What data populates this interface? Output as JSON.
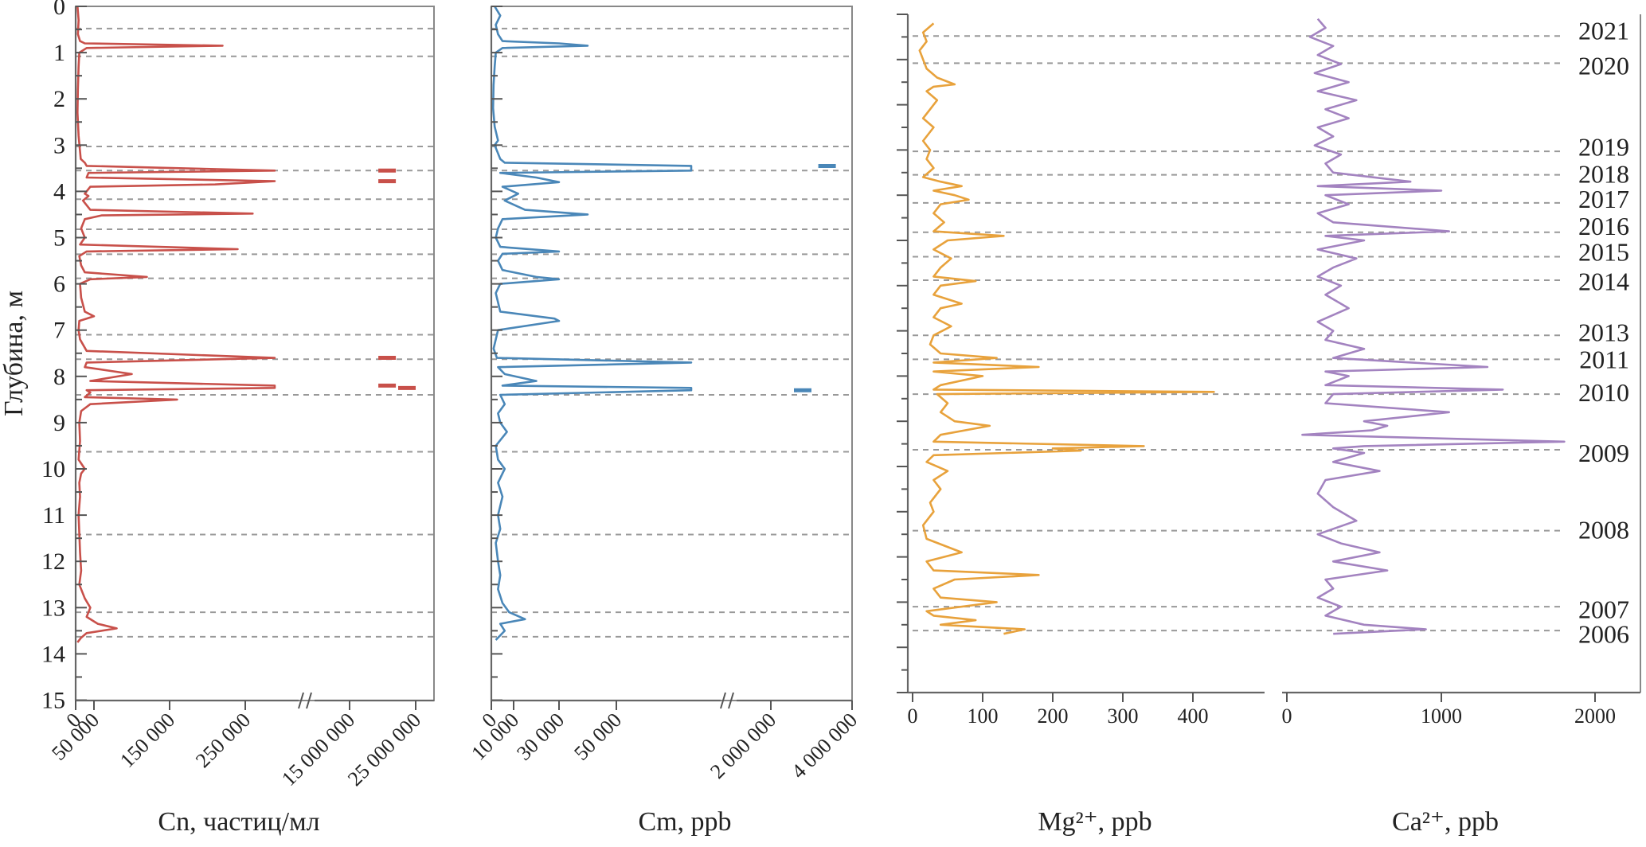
{
  "y_axis": {
    "label": "Глубина, м",
    "ticks": [
      "0",
      "1",
      "2",
      "3",
      "4",
      "5",
      "6",
      "7",
      "8",
      "9",
      "10",
      "11",
      "12",
      "13",
      "14",
      "15"
    ]
  },
  "year_labels": [
    "2021",
    "2020",
    "2019",
    "2018",
    "2017",
    "2016",
    "2015",
    "2014",
    "2013",
    "2011",
    "2010",
    "2009",
    "2008",
    "2007",
    "2006"
  ],
  "chart_data": [
    {
      "type": "line",
      "title": "",
      "xlabel": "Cn, частиц/мл",
      "ylabel": "Глубина, м",
      "x_tick_labels": [
        "0",
        "50 000",
        "150 000",
        "250 000",
        "15 000 000",
        "25 000 000"
      ],
      "broken_axis": true,
      "color": "#c8504a",
      "ylim": [
        0,
        15
      ],
      "xlim_low": [
        0,
        290000
      ],
      "xlim_high": [
        5000000,
        27000000
      ],
      "series": [
        {
          "depth": [
            0,
            0.3,
            0.6,
            0.75,
            0.8,
            0.85,
            0.9,
            1.0,
            1.3,
            1.8,
            2.3,
            2.8,
            3.3,
            3.38,
            3.45,
            3.55,
            3.6,
            3.7,
            3.78,
            3.85,
            3.9,
            4.05,
            4.1,
            4.2,
            4.4,
            4.48,
            4.52,
            4.6,
            4.8,
            5.0,
            5.15,
            5.25,
            5.3,
            5.4,
            5.6,
            5.75,
            5.85,
            5.9,
            6.0,
            6.3,
            6.6,
            6.7,
            6.75,
            6.8,
            7.0,
            7.2,
            7.45,
            7.6,
            7.7,
            7.8,
            7.95,
            8.1,
            8.2,
            8.25,
            8.3,
            8.35,
            8.45,
            8.5,
            8.6,
            8.75,
            9.0,
            9.4,
            9.8,
            10.0,
            10.1,
            10.3,
            10.6,
            11.0,
            11.4,
            11.8,
            12.2,
            12.5,
            12.8,
            13.0,
            13.2,
            13.35,
            13.45,
            13.55,
            13.65,
            13.75
          ],
          "value": [
            5000,
            8000,
            6000,
            12000,
            25000,
            220000,
            30000,
            10000,
            8000,
            6000,
            5000,
            8000,
            14000,
            25000,
            30000,
            22000000,
            35000,
            30000,
            22000000,
            210000,
            40000,
            25000,
            35000,
            20000,
            40000,
            260000,
            60000,
            25000,
            15000,
            25000,
            12000,
            240000,
            30000,
            10000,
            15000,
            25000,
            120000,
            40000,
            12000,
            15000,
            25000,
            50000,
            30000,
            10000,
            8000,
            12000,
            30000,
            22000000,
            30000,
            25000,
            100000,
            40000,
            22000000,
            25000000,
            30000,
            40000,
            25000,
            160000,
            40000,
            15000,
            10000,
            12000,
            8000,
            25000,
            15000,
            10000,
            12000,
            8000,
            10000,
            12000,
            15000,
            10000,
            25000,
            40000,
            30000,
            55000,
            80000,
            30000,
            15000,
            5000
          ]
        }
      ]
    },
    {
      "type": "line",
      "title": "",
      "xlabel": "Cm, ppb",
      "ylabel": "",
      "x_tick_labels": [
        "0",
        "10 000",
        "30 000",
        "50 000",
        "2 000 000",
        "4 000 000"
      ],
      "broken_axis": true,
      "color": "#4a87b8",
      "ylim": [
        0,
        15
      ],
      "xlim_low": [
        0,
        62000
      ],
      "xlim_high": [
        1000000,
        4300000
      ],
      "series": [
        {
          "depth": [
            0,
            0.2,
            0.4,
            0.6,
            0.75,
            0.8,
            0.85,
            0.9,
            1.0,
            1.3,
            1.7,
            2.2,
            2.6,
            2.9,
            3.0,
            3.3,
            3.38,
            3.45,
            3.55,
            3.6,
            3.7,
            3.8,
            3.9,
            4.05,
            4.2,
            4.4,
            4.5,
            4.6,
            4.8,
            5.0,
            5.2,
            5.3,
            5.35,
            5.5,
            5.7,
            5.85,
            5.9,
            6.0,
            6.2,
            6.4,
            6.6,
            6.75,
            6.8,
            7.0,
            7.2,
            7.4,
            7.6,
            7.7,
            7.8,
            7.95,
            8.1,
            8.2,
            8.25,
            8.3,
            8.4,
            8.6,
            8.8,
            9.0,
            9.2,
            9.5,
            9.8,
            10.0,
            10.3,
            10.6,
            11.0,
            11.3,
            11.6,
            12.0,
            12.3,
            12.6,
            12.9,
            13.1,
            13.25,
            13.35,
            13.5,
            13.7
          ],
          "value": [
            1500,
            4000,
            2000,
            3000,
            5000,
            30000,
            40000,
            5000,
            2000,
            1500,
            1000,
            800,
            1500,
            3000,
            1500,
            4000,
            6000,
            3600000,
            62000,
            4000,
            20000,
            30000,
            5000,
            12000,
            6000,
            15000,
            40000,
            5000,
            3000,
            2000,
            4000,
            30000,
            5000,
            3000,
            5000,
            20000,
            30000,
            4000,
            2000,
            3000,
            4000,
            28000,
            30000,
            3000,
            2000,
            1000,
            2500,
            62000,
            3000,
            6000,
            20000,
            5000,
            62000,
            3000000,
            4000,
            6000,
            3000,
            4000,
            7000,
            2000,
            3000,
            6000,
            3000,
            5000,
            3000,
            4000,
            2000,
            3000,
            4000,
            3000,
            5000,
            8000,
            15000,
            4000,
            6000,
            2000
          ]
        }
      ]
    },
    {
      "type": "line",
      "title": "",
      "xlabel": "Mg²⁺, ppb",
      "ylabel": "",
      "x_tick_labels": [
        "0",
        "100",
        "200",
        "300",
        "400"
      ],
      "color": "#e8a23c",
      "ylim": [
        0,
        15
      ],
      "xlim": [
        0,
        480
      ],
      "series": [
        {
          "depth": [
            0.2,
            0.4,
            0.6,
            0.8,
            1.0,
            1.2,
            1.4,
            1.55,
            1.6,
            1.7,
            1.9,
            2.1,
            2.3,
            2.5,
            2.8,
            3.0,
            3.2,
            3.4,
            3.6,
            3.7,
            3.8,
            3.9,
            4.0,
            4.1,
            4.2,
            4.4,
            4.6,
            4.8,
            4.9,
            5.0,
            5.2,
            5.4,
            5.6,
            5.8,
            5.9,
            6.0,
            6.2,
            6.4,
            6.5,
            6.7,
            6.9,
            7.1,
            7.3,
            7.5,
            7.6,
            7.7,
            7.8,
            7.9,
            8.0,
            8.2,
            8.3,
            8.35,
            8.4,
            8.6,
            8.8,
            9.0,
            9.1,
            9.3,
            9.45,
            9.55,
            9.6,
            9.65,
            9.75,
            9.9,
            10.1,
            10.3,
            10.5,
            10.8,
            11.0,
            11.3,
            11.6,
            11.9,
            12.1,
            12.3,
            12.4,
            12.5,
            12.7,
            12.9,
            13.0,
            13.2,
            13.3,
            13.4,
            13.5,
            13.6,
            13.7
          ],
          "value": [
            30,
            15,
            20,
            10,
            15,
            20,
            35,
            60,
            30,
            20,
            35,
            25,
            15,
            30,
            15,
            25,
            20,
            30,
            15,
            40,
            70,
            30,
            60,
            80,
            40,
            30,
            45,
            30,
            130,
            50,
            30,
            55,
            40,
            30,
            90,
            40,
            30,
            70,
            40,
            30,
            55,
            30,
            25,
            40,
            120,
            30,
            180,
            30,
            100,
            40,
            30,
            430,
            35,
            50,
            40,
            60,
            110,
            40,
            30,
            330,
            200,
            240,
            30,
            20,
            50,
            30,
            40,
            25,
            30,
            15,
            20,
            70,
            20,
            30,
            180,
            60,
            30,
            40,
            120,
            20,
            30,
            90,
            40,
            160,
            130
          ]
        }
      ]
    },
    {
      "type": "line",
      "title": "",
      "xlabel": "Ca²⁺, ppb",
      "ylabel": "",
      "x_tick_labels": [
        "0",
        "1000",
        "2000"
      ],
      "color": "#a383c0",
      "ylim": [
        0,
        15
      ],
      "xlim": [
        0,
        2400
      ],
      "series": [
        {
          "depth": [
            0.1,
            0.3,
            0.5,
            0.7,
            0.9,
            1.1,
            1.3,
            1.5,
            1.7,
            1.9,
            2.1,
            2.3,
            2.5,
            2.7,
            2.9,
            3.1,
            3.3,
            3.5,
            3.7,
            3.8,
            3.9,
            4.0,
            4.2,
            4.4,
            4.6,
            4.8,
            4.9,
            5.0,
            5.2,
            5.4,
            5.6,
            5.8,
            6.0,
            6.2,
            6.5,
            6.8,
            7.0,
            7.2,
            7.4,
            7.6,
            7.8,
            7.9,
            8.0,
            8.2,
            8.3,
            8.4,
            8.6,
            8.8,
            9.0,
            9.1,
            9.2,
            9.3,
            9.45,
            9.55,
            9.6,
            9.7,
            9.9,
            10.1,
            10.3,
            10.6,
            10.9,
            11.2,
            11.5,
            11.7,
            11.9,
            12.1,
            12.3,
            12.5,
            12.7,
            12.9,
            13.1,
            13.3,
            13.5,
            13.6,
            13.7
          ],
          "value": [
            200,
            250,
            150,
            300,
            200,
            350,
            180,
            400,
            200,
            450,
            250,
            400,
            200,
            300,
            180,
            350,
            250,
            300,
            800,
            200,
            1000,
            250,
            400,
            200,
            300,
            1050,
            250,
            500,
            200,
            450,
            300,
            200,
            350,
            250,
            400,
            200,
            300,
            250,
            500,
            300,
            1300,
            250,
            400,
            250,
            1400,
            300,
            250,
            1050,
            500,
            650,
            550,
            100,
            1800,
            500,
            300,
            500,
            300,
            600,
            250,
            200,
            300,
            450,
            200,
            350,
            600,
            300,
            650,
            250,
            300,
            200,
            350,
            250,
            500,
            900,
            300
          ]
        }
      ]
    }
  ]
}
